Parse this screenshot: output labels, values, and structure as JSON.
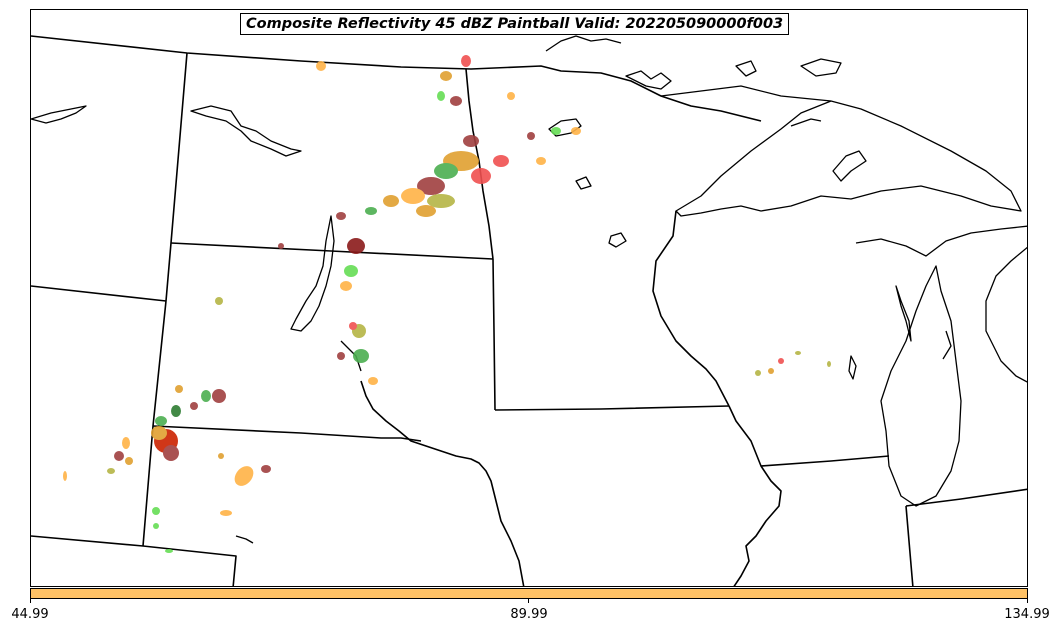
{
  "title": "Composite Reflectivity 45 dBZ Paintball Valid: 202205090000f003",
  "colorbar": {
    "color": "#ffc266",
    "ticks": [
      "44.99",
      "89.99",
      "134.99"
    ]
  },
  "colors": {
    "border": "#000000",
    "paintball": [
      "#4caf50",
      "#66dd55",
      "#b5b545",
      "#e0a030",
      "#ffb347",
      "#f05050",
      "#a04040",
      "#cc2200",
      "#8b1a1a",
      "#2e7d32"
    ]
  }
}
